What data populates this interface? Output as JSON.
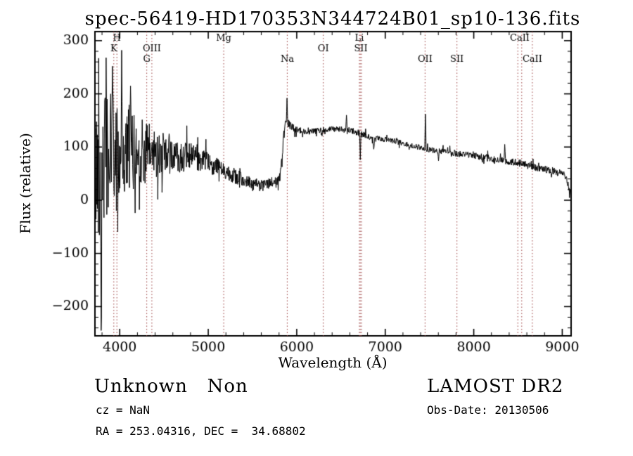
{
  "annotations": {
    "class_text": "Unknown   Non",
    "survey_text": "LAMOST DR2",
    "cz_text": "cz = NaN",
    "obs_text": "Obs-Date: 20130506",
    "radec_text": "RA = 253.04316, DEC =  34.68802"
  },
  "chart_data": {
    "type": "line",
    "title": "spec-56419-HD170353N344724B01_sp10-136.fits",
    "xlabel": "Wavelength (Å)",
    "ylabel": "Flux (relative)",
    "xlim": [
      3720,
      9100
    ],
    "ylim": [
      -255,
      317
    ],
    "xticks": [
      4000,
      5000,
      6000,
      7000,
      8000,
      9000
    ],
    "yticks": [
      -200,
      -100,
      0,
      100,
      200,
      300
    ],
    "x_minor_step": 200,
    "y_minor_step": 20,
    "line_color": "#000000",
    "marker_color": "#9a3b3b",
    "grid": false,
    "legend": "none",
    "spectral_lines": [
      {
        "label": "H",
        "row": 1,
        "wavelengths": [
          3968
        ]
      },
      {
        "label": "K",
        "row": 2,
        "wavelengths": [
          3933
        ]
      },
      {
        "label": "OIII",
        "row": 2,
        "wavelengths": [
          4363
        ]
      },
      {
        "label": "G",
        "row": 3,
        "wavelengths": [
          4305
        ]
      },
      {
        "label": "Mg",
        "row": 1,
        "wavelengths": [
          5175
        ]
      },
      {
        "label": "Na",
        "row": 3,
        "wavelengths": [
          5893
        ]
      },
      {
        "label": "OI",
        "row": 2,
        "wavelengths": [
          6300
        ]
      },
      {
        "label": "Li",
        "row": 1,
        "wavelengths": [
          6708
        ]
      },
      {
        "label": "SII",
        "row": 2,
        "wavelengths": [
          6717,
          6731
        ]
      },
      {
        "label": "OII",
        "row": 3,
        "wavelengths": [
          7450
        ]
      },
      {
        "label": "SII",
        "row": 3,
        "wavelengths": [
          7810
        ]
      },
      {
        "label": "CaII",
        "row": 1,
        "wavelengths": [
          8498,
          8542
        ]
      },
      {
        "label": "CaII",
        "row": 3,
        "wavelengths": [
          8662
        ]
      }
    ],
    "continuum": [
      [
        3720,
        40
      ],
      [
        3760,
        70
      ],
      [
        3800,
        75
      ],
      [
        3850,
        80
      ],
      [
        3900,
        82
      ],
      [
        3950,
        85
      ],
      [
        4000,
        88
      ],
      [
        4100,
        92
      ],
      [
        4200,
        93
      ],
      [
        4300,
        90
      ],
      [
        4400,
        88
      ],
      [
        4500,
        86
      ],
      [
        4600,
        84
      ],
      [
        4700,
        82
      ],
      [
        4800,
        80
      ],
      [
        4900,
        76
      ],
      [
        5000,
        70
      ],
      [
        5100,
        63
      ],
      [
        5150,
        58
      ],
      [
        5200,
        55
      ],
      [
        5250,
        50
      ],
      [
        5300,
        46
      ],
      [
        5350,
        42
      ],
      [
        5400,
        38
      ],
      [
        5450,
        35
      ],
      [
        5500,
        32
      ],
      [
        5550,
        30
      ],
      [
        5600,
        28
      ],
      [
        5650,
        30
      ],
      [
        5700,
        32
      ],
      [
        5750,
        34
      ],
      [
        5790,
        36
      ],
      [
        5810,
        45
      ],
      [
        5830,
        70
      ],
      [
        5850,
        110
      ],
      [
        5870,
        140
      ],
      [
        5890,
        155
      ],
      [
        5910,
        142
      ],
      [
        5950,
        136
      ],
      [
        6000,
        132
      ],
      [
        6100,
        128
      ],
      [
        6200,
        130
      ],
      [
        6300,
        132
      ],
      [
        6400,
        134
      ],
      [
        6500,
        133
      ],
      [
        6600,
        131
      ],
      [
        6700,
        127
      ],
      [
        6750,
        123
      ],
      [
        6800,
        121
      ],
      [
        6850,
        117
      ],
      [
        6870,
        110
      ],
      [
        6900,
        117
      ],
      [
        7000,
        114
      ],
      [
        7100,
        111
      ],
      [
        7200,
        107
      ],
      [
        7300,
        102
      ],
      [
        7400,
        99
      ],
      [
        7500,
        95
      ],
      [
        7600,
        93
      ],
      [
        7700,
        91
      ],
      [
        7800,
        88
      ],
      [
        7900,
        86
      ],
      [
        8000,
        84
      ],
      [
        8100,
        81
      ],
      [
        8200,
        78
      ],
      [
        8300,
        76
      ],
      [
        8400,
        73
      ],
      [
        8500,
        70
      ],
      [
        8600,
        66
      ],
      [
        8700,
        62
      ],
      [
        8800,
        58
      ],
      [
        8900,
        55
      ],
      [
        8950,
        52
      ],
      [
        9000,
        50
      ],
      [
        9040,
        45
      ],
      [
        9070,
        25
      ],
      [
        9100,
        12
      ]
    ],
    "noise_amplitude": [
      [
        3720,
        150
      ],
      [
        3780,
        155
      ],
      [
        3850,
        150
      ],
      [
        3900,
        140
      ],
      [
        3950,
        130
      ],
      [
        4000,
        115
      ],
      [
        4050,
        105
      ],
      [
        4100,
        95
      ],
      [
        4150,
        88
      ],
      [
        4200,
        82
      ],
      [
        4250,
        76
      ],
      [
        4300,
        70
      ],
      [
        4350,
        64
      ],
      [
        4400,
        58
      ],
      [
        4450,
        52
      ],
      [
        4500,
        47
      ],
      [
        4600,
        40
      ],
      [
        4700,
        34
      ],
      [
        4800,
        30
      ],
      [
        4900,
        26
      ],
      [
        5000,
        23
      ],
      [
        5100,
        21
      ],
      [
        5200,
        19
      ],
      [
        5300,
        17
      ],
      [
        5400,
        15
      ],
      [
        5500,
        13
      ],
      [
        5600,
        12
      ],
      [
        5700,
        12
      ],
      [
        5800,
        14
      ],
      [
        5900,
        12
      ],
      [
        6000,
        8
      ],
      [
        6200,
        7
      ],
      [
        6400,
        6
      ],
      [
        6600,
        7
      ],
      [
        6800,
        7
      ],
      [
        7000,
        6
      ],
      [
        7200,
        6
      ],
      [
        7400,
        6
      ],
      [
        7600,
        6
      ],
      [
        7800,
        7
      ],
      [
        8000,
        7
      ],
      [
        8200,
        8
      ],
      [
        8400,
        8
      ],
      [
        8600,
        8
      ],
      [
        8800,
        8
      ],
      [
        9000,
        8
      ],
      [
        9100,
        8
      ]
    ],
    "spikes": [
      [
        3788,
        -245
      ],
      [
        3846,
        268
      ],
      [
        3918,
        252
      ],
      [
        4022,
        282
      ],
      [
        4120,
        215
      ],
      [
        5888,
        192
      ],
      [
        6560,
        160
      ],
      [
        6718,
        76
      ],
      [
        6868,
        96
      ],
      [
        7452,
        162
      ],
      [
        7600,
        74
      ],
      [
        8350,
        105
      ]
    ],
    "seed": 42,
    "sample_step": 4
  }
}
